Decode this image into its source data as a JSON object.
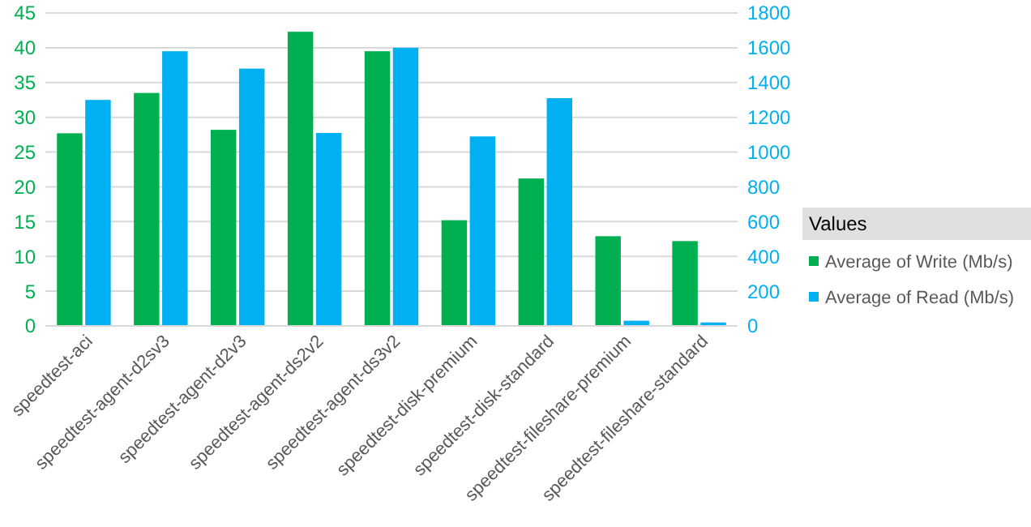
{
  "chart_data": {
    "type": "bar",
    "categories": [
      "speedtest-aci",
      "speedtest-agent-d2sv3",
      "speedtest-agent-d2v3",
      "speedtest-agent-ds2v2",
      "speedtest-agent-ds3v2",
      "speedtest-disk-premium",
      "speedtest-disk-standard",
      "speedtest-fileshare-premium",
      "speedtest-fileshare-standard"
    ],
    "series": [
      {
        "name": "Average of Write (Mb/s)",
        "color": "#00b050",
        "values": [
          27.7,
          33.5,
          28.2,
          42.3,
          39.5,
          15.2,
          21.2,
          12.9,
          12.2
        ]
      },
      {
        "name": "Average of Read (Mb/s)",
        "color": "#00b0f0",
        "axis": "y2",
        "values": [
          1300,
          1580,
          1480,
          1110,
          1600,
          1090,
          1310,
          30,
          20
        ]
      }
    ],
    "ylim": [
      0,
      45
    ],
    "yticks": [
      0,
      5,
      10,
      15,
      20,
      25,
      30,
      35,
      40,
      45
    ],
    "y2lim": [
      0,
      1800
    ],
    "y2ticks": [
      0,
      200,
      400,
      600,
      800,
      1000,
      1200,
      1400,
      1600,
      1800
    ],
    "grid": "y",
    "legend": "right",
    "legend_title": "Values"
  }
}
